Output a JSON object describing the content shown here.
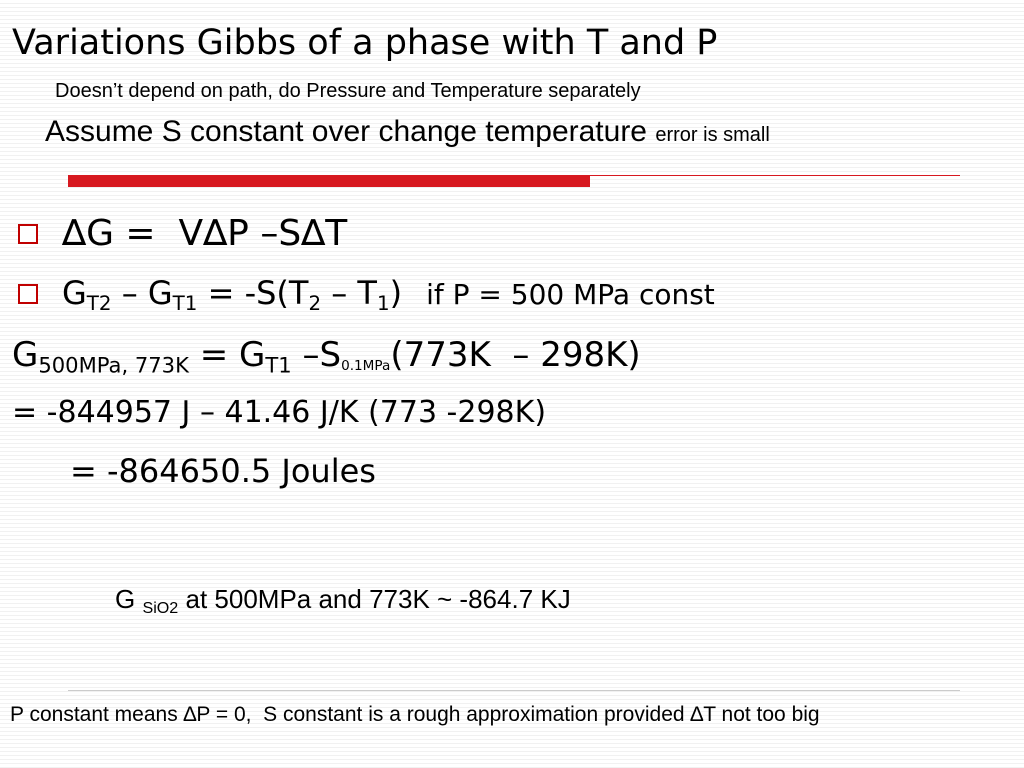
{
  "title": "Variations Gibbs of a phase with T and P",
  "subtitle": "Doesn’t depend on path, do Pressure and Temperature separately",
  "assumption": {
    "text": "Assume S constant over change temperature",
    "note": "error is small"
  },
  "bullets": [
    {
      "segments": [
        {
          "text": "∆G =  V∆P –S∆T"
        }
      ]
    },
    {
      "segments": [
        {
          "text": "G"
        },
        {
          "text": "T2",
          "sub": true
        },
        {
          "text": " – G"
        },
        {
          "text": "T1",
          "sub": true
        },
        {
          "text": " = -S(T"
        },
        {
          "text": "2",
          "sub": true
        },
        {
          "text": " – T"
        },
        {
          "text": "1",
          "sub": true
        },
        {
          "text": ")"
        }
      ],
      "note": "if P = 500 MPa const"
    }
  ],
  "lines": [
    {
      "segments": [
        {
          "text": "G"
        },
        {
          "text": "500MPa, 773K",
          "sub": true
        },
        {
          "text": " = G"
        },
        {
          "text": "T1",
          "sub": true
        },
        {
          "text": " –S"
        },
        {
          "text": "0.1MPa",
          "sub": true
        },
        {
          "text": "(773K  – 298K)"
        }
      ]
    },
    {
      "segments": [
        {
          "text": "= -844957 J – 41.46 J/K (773 -298K)"
        }
      ]
    },
    {
      "segments": [
        {
          "text": "= -864650.5 Joules"
        }
      ]
    }
  ],
  "result": {
    "segments": [
      {
        "text": "G "
      },
      {
        "text": "SiO2",
        "sub": true
      },
      {
        "text": " at 500MPa and 773K ~ -864.7 KJ"
      }
    ]
  },
  "footer": "P constant means ∆P = 0,  S constant is a rough approximation provided ∆T not too big"
}
